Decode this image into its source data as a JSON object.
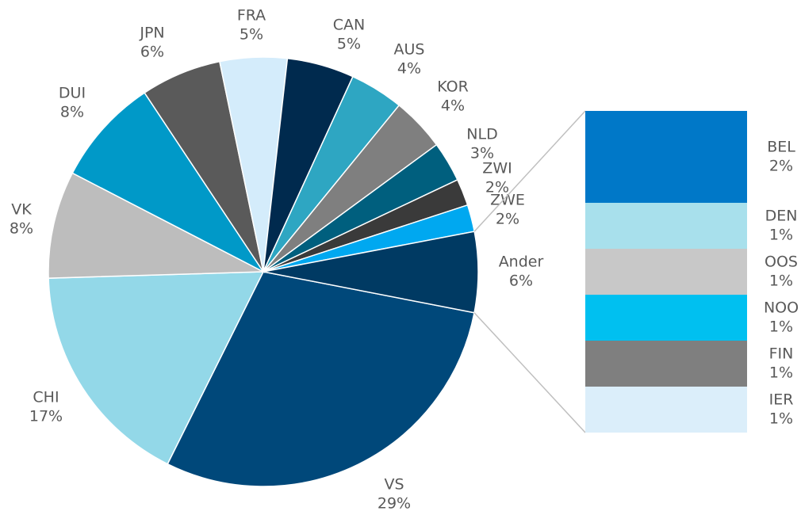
{
  "chart_data": {
    "type": "pie-of-bar",
    "categories": [
      "VS",
      "CHI",
      "VK",
      "DUI",
      "JPN",
      "FRA",
      "CAN",
      "AUS",
      "KOR",
      "NLD",
      "ZWI",
      "ZWE",
      "Ander"
    ],
    "values": [
      29,
      17,
      8,
      8,
      6,
      5,
      5,
      4,
      4,
      3,
      2,
      2,
      6
    ],
    "value_labels": [
      "29%",
      "17%",
      "8%",
      "8%",
      "6%",
      "5%",
      "5%",
      "4%",
      "4%",
      "3%",
      "2%",
      "2%",
      "6%"
    ],
    "colors": [
      "#00487a",
      "#93d8e8",
      "#bdbdbd",
      "#0099c8",
      "#5a5a5a",
      "#d4ecfb",
      "#002a4e",
      "#2ea6c2",
      "#7f7f7f",
      "#005f7e",
      "#3a3a3a",
      "#00a8f0",
      "#003a63"
    ],
    "breakdown": {
      "categories": [
        "BEL",
        "DEN",
        "OOS",
        "NOO",
        "FIN",
        "IER"
      ],
      "values": [
        2,
        1,
        1,
        1,
        1,
        1
      ],
      "value_labels": [
        "2%",
        "1%",
        "1%",
        "1%",
        "1%",
        "1%"
      ],
      "colors": [
        "#0078c8",
        "#a8e0ec",
        "#c8c8c8",
        "#00c0f0",
        "#7f7f7f",
        "#dbeefa"
      ]
    }
  }
}
